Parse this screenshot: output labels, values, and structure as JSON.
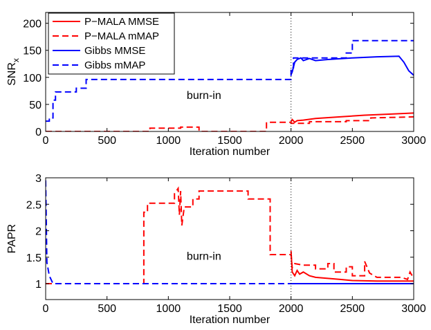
{
  "chart_data": [
    {
      "type": "line",
      "ylabel": "SNR",
      "ylabel_sub": "x",
      "xlabel": "Iteration number",
      "xlim": [
        0,
        3000
      ],
      "ylim": [
        0,
        220
      ],
      "xticks": [
        0,
        500,
        1000,
        1500,
        2000,
        2500,
        3000
      ],
      "yticks": [
        0,
        50,
        100,
        150,
        200
      ],
      "grid": false,
      "legend": "top-left",
      "annotation": {
        "text": "burn-in",
        "x": 1150,
        "y": 60
      },
      "vline": 2000,
      "series": [
        {
          "name": "P−MALA MMSE",
          "color": "#ff0000",
          "dash": "solid",
          "points": [
            [
              2000,
              18
            ],
            [
              2010,
              22
            ],
            [
              2030,
              17
            ],
            [
              2050,
              20
            ],
            [
              2100,
              21
            ],
            [
              2200,
              24
            ],
            [
              2400,
              27
            ],
            [
              2600,
              30
            ],
            [
              2800,
              32
            ],
            [
              3000,
              34
            ]
          ]
        },
        {
          "name": "P−MALA mMAP",
          "color": "#ff0000",
          "dash": "dashed",
          "points": [
            [
              0,
              0
            ],
            [
              850,
              0
            ],
            [
              850,
              6
            ],
            [
              1100,
              6
            ],
            [
              1100,
              8
            ],
            [
              1250,
              8
            ],
            [
              1250,
              0
            ],
            [
              1800,
              0
            ],
            [
              1800,
              17
            ],
            [
              2000,
              17
            ],
            [
              2000,
              15
            ],
            [
              2150,
              15
            ],
            [
              2150,
              18
            ],
            [
              2450,
              18
            ],
            [
              2450,
              20
            ],
            [
              2650,
              20
            ],
            [
              2650,
              25
            ],
            [
              3000,
              27
            ]
          ]
        },
        {
          "name": "Gibbs MMSE",
          "color": "#0000ff",
          "dash": "solid",
          "points": [
            [
              2000,
              105
            ],
            [
              2010,
              110
            ],
            [
              2030,
              128
            ],
            [
              2050,
              133
            ],
            [
              2080,
              136
            ],
            [
              2100,
              131
            ],
            [
              2150,
              135
            ],
            [
              2200,
              131
            ],
            [
              2300,
              133
            ],
            [
              2500,
              136
            ],
            [
              2700,
              138
            ],
            [
              2880,
              139
            ],
            [
              2920,
              128
            ],
            [
              2960,
              112
            ],
            [
              3000,
              104
            ]
          ]
        },
        {
          "name": "Gibbs mMAP",
          "color": "#0000ff",
          "dash": "dashed",
          "points": [
            [
              0,
              19
            ],
            [
              30,
              19
            ],
            [
              30,
              25
            ],
            [
              60,
              25
            ],
            [
              60,
              58
            ],
            [
              80,
              58
            ],
            [
              80,
              73
            ],
            [
              250,
              73
            ],
            [
              250,
              80
            ],
            [
              330,
              80
            ],
            [
              330,
              96
            ],
            [
              2000,
              96
            ],
            [
              2000,
              118
            ],
            [
              2020,
              118
            ],
            [
              2020,
              136
            ],
            [
              2450,
              136
            ],
            [
              2450,
              145
            ],
            [
              2500,
              145
            ],
            [
              2500,
              168
            ],
            [
              3000,
              168
            ]
          ]
        }
      ]
    },
    {
      "type": "line",
      "ylabel": "PAPR",
      "xlabel": "Iteration number",
      "xlim": [
        0,
        3000
      ],
      "ylim": [
        0.7,
        3
      ],
      "xticks": [
        0,
        500,
        1000,
        1500,
        2000,
        2500,
        3000
      ],
      "yticks": [
        1,
        1.5,
        2,
        2.5,
        3
      ],
      "grid": false,
      "legend": "none",
      "annotation": {
        "text": "burn-in",
        "x": 1150,
        "y": 1.45
      },
      "vline": 2000,
      "series": [
        {
          "name": "P−MALA MMSE",
          "color": "#ff0000",
          "dash": "solid",
          "points": [
            [
              2000,
              1.62
            ],
            [
              2010,
              1.22
            ],
            [
              2030,
              1.15
            ],
            [
              2050,
              1.25
            ],
            [
              2070,
              1.18
            ],
            [
              2100,
              1.22
            ],
            [
              2150,
              1.15
            ],
            [
              2200,
              1.12
            ],
            [
              2300,
              1.1
            ],
            [
              2400,
              1.08
            ],
            [
              2500,
              1.06
            ],
            [
              2700,
              1.05
            ],
            [
              3000,
              1.05
            ]
          ]
        },
        {
          "name": "P−MALA mMAP",
          "color": "#ff0000",
          "dash": "dashed",
          "points": [
            [
              0,
              1
            ],
            [
              800,
              1
            ],
            [
              800,
              2.35
            ],
            [
              830,
              2.35
            ],
            [
              830,
              2.52
            ],
            [
              1050,
              2.52
            ],
            [
              1050,
              2.7
            ],
            [
              1080,
              2.8
            ],
            [
              1090,
              2.3
            ],
            [
              1100,
              2.75
            ],
            [
              1110,
              2.1
            ],
            [
              1130,
              2.45
            ],
            [
              1200,
              2.45
            ],
            [
              1200,
              2.6
            ],
            [
              1250,
              2.6
            ],
            [
              1250,
              2.75
            ],
            [
              1650,
              2.75
            ],
            [
              1650,
              2.6
            ],
            [
              1830,
              2.6
            ],
            [
              1830,
              1.55
            ],
            [
              2000,
              1.55
            ],
            [
              2010,
              1.3
            ],
            [
              2030,
              1.38
            ],
            [
              2100,
              1.35
            ],
            [
              2200,
              1.35
            ],
            [
              2200,
              1.28
            ],
            [
              2300,
              1.28
            ],
            [
              2300,
              1.38
            ],
            [
              2350,
              1.38
            ],
            [
              2350,
              1.22
            ],
            [
              2450,
              1.22
            ],
            [
              2450,
              1.32
            ],
            [
              2500,
              1.32
            ],
            [
              2500,
              1.15
            ],
            [
              2600,
              1.15
            ],
            [
              2600,
              1.42
            ],
            [
              2640,
              1.2
            ],
            [
              2700,
              1.12
            ],
            [
              2900,
              1.12
            ],
            [
              2950,
              1.08
            ],
            [
              2970,
              1.22
            ],
            [
              3000,
              1.1
            ]
          ]
        },
        {
          "name": "Gibbs MMSE",
          "color": "#0000ff",
          "dash": "solid",
          "points": [
            [
              2000,
              1
            ],
            [
              3000,
              1
            ]
          ]
        },
        {
          "name": "Gibbs mMAP",
          "color": "#0000ff",
          "dash": "dashed",
          "points": [
            [
              0,
              2.95
            ],
            [
              10,
              1.4
            ],
            [
              30,
              1.15
            ],
            [
              60,
              1.0
            ],
            [
              80,
              1.0
            ],
            [
              3000,
              1.0
            ]
          ]
        }
      ]
    }
  ]
}
